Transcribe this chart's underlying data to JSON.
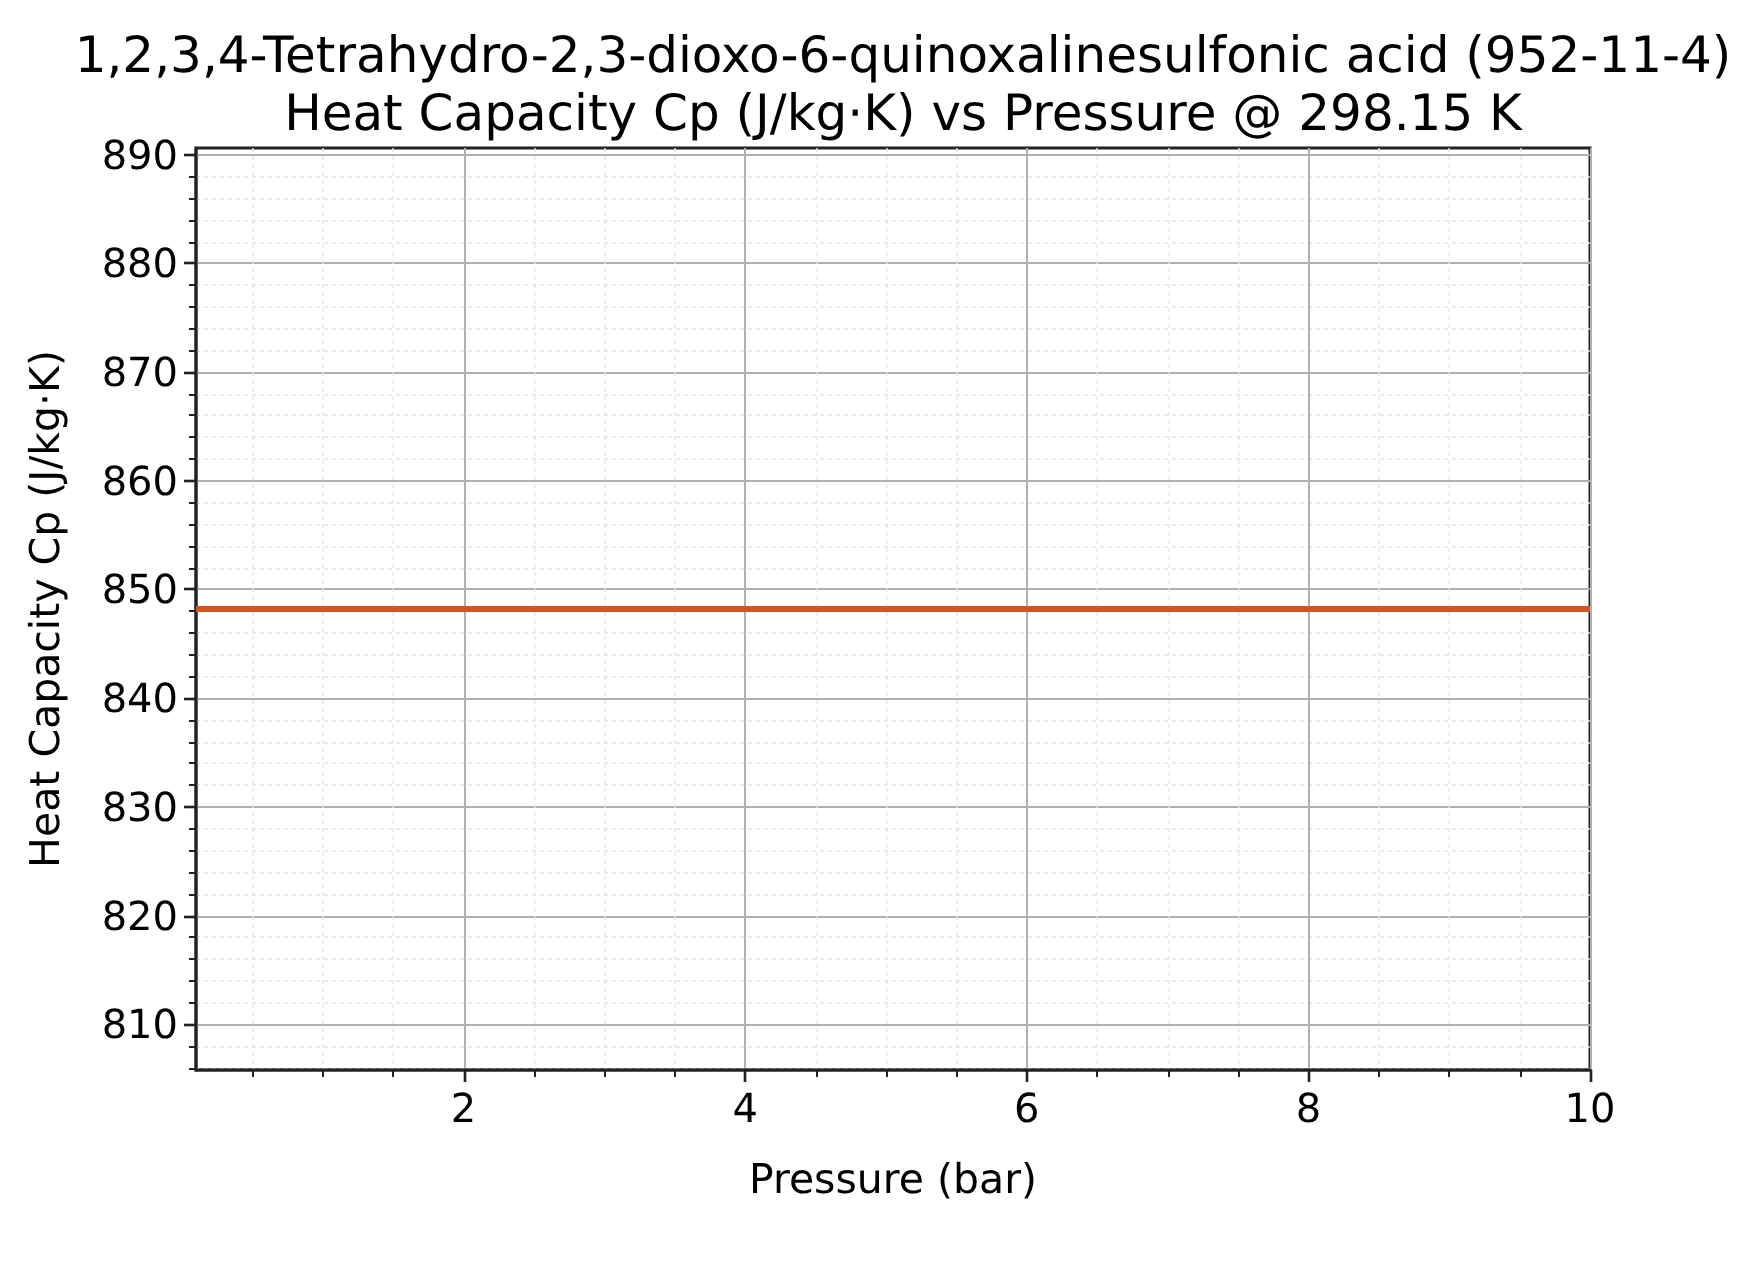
{
  "chart_data": {
    "type": "line",
    "title": "1,2,3,4-Tetrahydro-2,3-dioxo-6-quinoxalinesulfonic acid (952-11-4)\nHeat Capacity Cp (J/kg·K) vs Pressure @ 298.15 K",
    "xlabel": "Pressure (bar)",
    "ylabel": "Heat Capacity Cp (J/kg·K)",
    "x": [
      0.1,
      10
    ],
    "series": [
      {
        "color": "#d6541e",
        "values": [
          848.2,
          848.2
        ]
      }
    ],
    "xlim": [
      0.1,
      10
    ],
    "xticks": [
      {
        "value": 0.5,
        "label": null
      },
      {
        "value": 1,
        "label": null
      },
      {
        "value": 1.5,
        "label": null
      },
      2,
      {
        "value": 2.5,
        "label": null
      },
      {
        "value": 3,
        "label": null
      },
      {
        "value": 3.5,
        "label": null
      },
      4,
      {
        "value": 4.5,
        "label": null
      },
      {
        "value": 5,
        "label": null
      },
      {
        "value": 5.5,
        "label": null
      },
      6,
      {
        "value": 6.5,
        "label": null
      },
      {
        "value": 7,
        "label": null
      },
      {
        "value": 7.5,
        "label": null
      },
      8,
      {
        "value": 8.5,
        "label": null
      },
      {
        "value": 9,
        "label": null
      },
      {
        "value": 9.5,
        "label": null
      },
      10
    ],
    "ylim": [
      805.8,
      890.6
    ],
    "yticks": [
      {
        "value": 806,
        "label": null
      },
      {
        "value": 808,
        "label": null
      },
      810,
      {
        "value": 812,
        "label": null
      },
      {
        "value": 814,
        "label": null
      },
      {
        "value": 816,
        "label": null
      },
      {
        "value": 818,
        "label": null
      },
      820,
      {
        "value": 822,
        "label": null
      },
      {
        "value": 824,
        "label": null
      },
      {
        "value": 826,
        "label": null
      },
      {
        "value": 828,
        "label": null
      },
      830,
      {
        "value": 832,
        "label": null
      },
      {
        "value": 834,
        "label": null
      },
      {
        "value": 836,
        "label": null
      },
      {
        "value": 838,
        "label": null
      },
      840,
      {
        "value": 842,
        "label": null
      },
      {
        "value": 844,
        "label": null
      },
      {
        "value": 846,
        "label": null
      },
      {
        "value": 848,
        "label": null
      },
      850,
      {
        "value": 852,
        "label": null
      },
      {
        "value": 854,
        "label": null
      },
      {
        "value": 856,
        "label": null
      },
      {
        "value": 858,
        "label": null
      },
      860,
      {
        "value": 862,
        "label": null
      },
      {
        "value": 864,
        "label": null
      },
      {
        "value": 866,
        "label": null
      },
      {
        "value": 868,
        "label": null
      },
      870,
      {
        "value": 872,
        "label": null
      },
      {
        "value": 874,
        "label": null
      },
      {
        "value": 876,
        "label": null
      },
      {
        "value": 878,
        "label": null
      },
      880,
      {
        "value": 882,
        "label": null
      },
      {
        "value": 884,
        "label": null
      },
      {
        "value": 886,
        "label": null
      },
      {
        "value": 888,
        "label": null
      },
      890
    ],
    "grid": true,
    "marker": "none",
    "line_style": "solid"
  }
}
